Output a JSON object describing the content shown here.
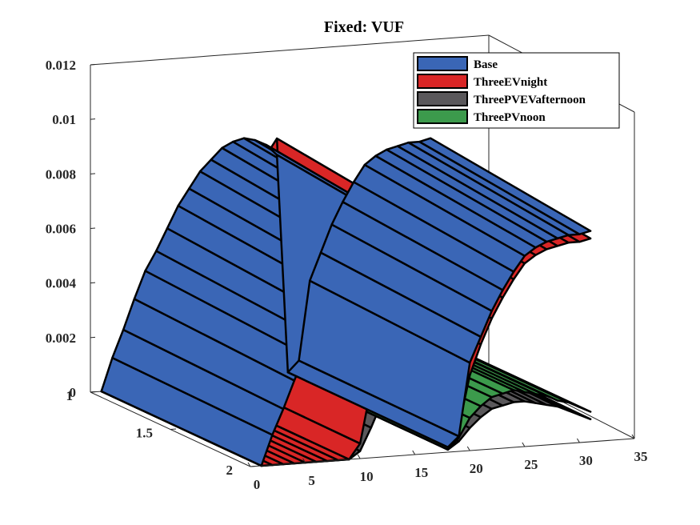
{
  "chart_data": {
    "type": "surface-3d",
    "title": "Fixed: VUF",
    "xlabel": "",
    "ylabel": "",
    "zlabel": "",
    "x_ticks": [
      "0",
      "5",
      "10",
      "15",
      "20",
      "25",
      "30",
      "35"
    ],
    "y_ticks": [
      "1",
      "1.5",
      "2"
    ],
    "z_ticks": [
      "0",
      "0.002",
      "0.004",
      "0.006",
      "0.008",
      "0.01",
      "0.012"
    ],
    "xlim": [
      0,
      35
    ],
    "ylim": [
      1,
      2
    ],
    "zlim": [
      0,
      0.012
    ],
    "legend_position": "top-right",
    "series": [
      {
        "name": "Base",
        "color": "#3a66b6",
        "values": [
          0.0,
          0.0012,
          0.0022,
          0.0033,
          0.0043,
          0.005,
          0.0058,
          0.0066,
          0.0072,
          0.0078,
          0.0082,
          0.0086,
          0.0088,
          0.0089,
          0.0088,
          0.0086,
          0.0082,
          0.0002,
          0.0006,
          0.0035,
          0.0045,
          0.0055,
          0.0063,
          0.007,
          0.0076,
          0.0079,
          0.0081,
          0.0082,
          0.0083,
          0.0083,
          0.0084
        ]
      },
      {
        "name": "ThreeEVnight",
        "color": "#d92626",
        "values": [
          0.0,
          0.0,
          0.0,
          0.0,
          0.0,
          0.0,
          0.0,
          0.0,
          0.0,
          0.0006,
          0.0028,
          0.0046,
          0.0058,
          0.0068,
          0.0076,
          0.0082,
          0.0088,
          0.0004,
          0.001,
          0.003,
          0.0042,
          0.0052,
          0.006,
          0.0067,
          0.0073,
          0.0076,
          0.0078,
          0.0079,
          0.008,
          0.008,
          0.0081
        ]
      },
      {
        "name": "ThreePVEVafternoon",
        "color": "#5a585b",
        "values": [
          0.0,
          0.0,
          0.0,
          0.0,
          0.0,
          0.0,
          0.0,
          0.0,
          0.0,
          0.0003,
          0.0012,
          0.0022,
          0.003,
          0.0036,
          0.0038,
          0.0034,
          0.0026,
          0.0001,
          0.0004,
          0.0009,
          0.0013,
          0.0016,
          0.0017,
          0.0018,
          0.0018,
          0.0017,
          0.0016,
          0.0015,
          0.0013,
          0.0011,
          0.0009
        ]
      },
      {
        "name": "ThreePVnoon",
        "color": "#3c9a4c",
        "values": [
          0.0,
          0.001,
          0.0012,
          0.0014,
          0.0015,
          0.0016,
          0.0018,
          0.002,
          0.0022,
          0.0026,
          0.003,
          0.0035,
          0.0039,
          0.0042,
          0.0044,
          0.0042,
          0.0036,
          0.0001,
          0.0005,
          0.0012,
          0.0016,
          0.0019,
          0.002,
          0.0021,
          0.002,
          0.0019,
          0.0018,
          0.0016,
          0.0015,
          0.0013,
          0.0011
        ]
      }
    ]
  }
}
